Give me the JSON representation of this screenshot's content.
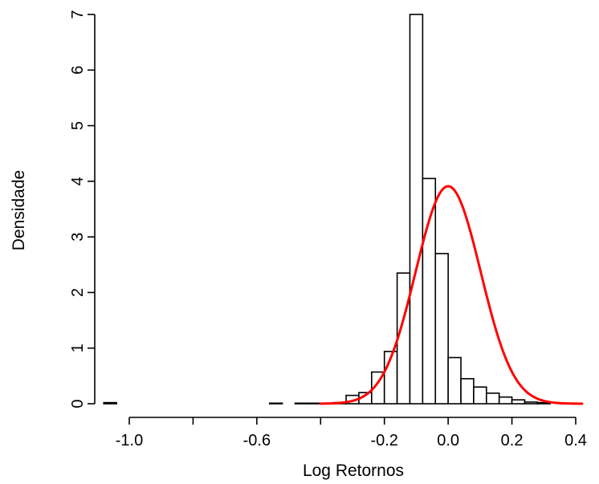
{
  "chart_data": {
    "type": "bar",
    "title": "",
    "xlabel": "Log Retornos",
    "ylabel": "Densidade",
    "xlim": [
      -1.1,
      0.45
    ],
    "ylim": [
      0,
      7
    ],
    "x_ticks": [
      -1.0,
      -0.8,
      -0.6,
      -0.4,
      -0.2,
      0.0,
      0.2,
      0.4
    ],
    "x_tick_labels": [
      "-1.0",
      "",
      "-0.6",
      "",
      "-0.2",
      "0.0",
      "0.2",
      "0.4"
    ],
    "y_ticks": [
      0,
      1,
      2,
      3,
      4,
      5,
      6,
      7
    ],
    "y_tick_labels": [
      "0",
      "1",
      "2",
      "3",
      "4",
      "5",
      "6",
      "7"
    ],
    "grid": false,
    "bin_width": 0.04,
    "histogram": {
      "bin_edges": [
        -1.08,
        -1.04,
        -1.0,
        -0.96,
        -0.92,
        -0.88,
        -0.84,
        -0.8,
        -0.76,
        -0.72,
        -0.68,
        -0.64,
        -0.6,
        -0.56,
        -0.52,
        -0.48,
        -0.44,
        -0.4,
        -0.36,
        -0.32,
        -0.28,
        -0.24,
        -0.2,
        -0.16,
        -0.12,
        -0.08,
        -0.04,
        0.0,
        0.04,
        0.08,
        0.12,
        0.16,
        0.2,
        0.24,
        0.28,
        0.32,
        0.36,
        0.4,
        0.44
      ],
      "densities": [
        0.02,
        0.0,
        0.0,
        0.0,
        0.0,
        0.0,
        0.0,
        0.0,
        0.0,
        0.0,
        0.0,
        0.0,
        0.0,
        0.01,
        0.0,
        0.01,
        0.01,
        0.0,
        0.02,
        0.15,
        0.2,
        0.57,
        0.94,
        2.35,
        7.0,
        4.05,
        2.7,
        0.83,
        0.45,
        0.3,
        0.19,
        0.12,
        0.07,
        0.03,
        0.02,
        0.0,
        0.0,
        0.0
      ]
    },
    "curve": {
      "type": "normal-density",
      "mean": 0.0,
      "sd": 0.102,
      "x_range": [
        -0.4,
        0.42
      ],
      "color": "#ff0000"
    },
    "colors": {
      "bar_fill": "#ffffff",
      "bar_stroke": "#000000",
      "axis": "#000000",
      "curve": "#ff0000"
    }
  }
}
